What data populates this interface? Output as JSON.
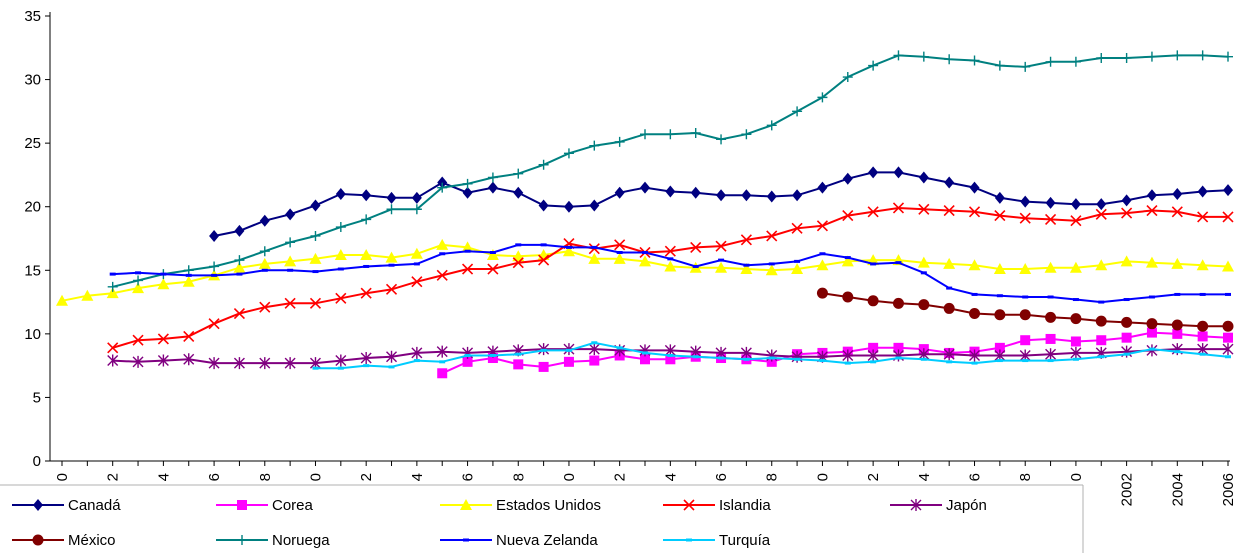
{
  "chart_data": {
    "type": "line",
    "title": "",
    "xlabel": "",
    "ylabel": "",
    "ylim": [
      0,
      35
    ],
    "y_ticks": [
      "0",
      "5",
      "10",
      "15",
      "20",
      "25",
      "30",
      "35"
    ],
    "grid": false,
    "legend_position": "bottom",
    "x_start_year": 1960,
    "x_end_year": 2006,
    "x_tick_labels": [
      "0",
      "2",
      "4",
      "6",
      "8",
      "0",
      "2",
      "4",
      "6",
      "8",
      "0",
      "2",
      "4",
      "6",
      "8",
      "0",
      "2",
      "4",
      "6",
      "8",
      "0",
      "2002",
      "2004",
      "2006"
    ],
    "series": [
      {
        "name": "Canadá",
        "color": "#000080",
        "marker": "diamond",
        "x": [
          1966,
          1967,
          1968,
          1969,
          1970,
          1971,
          1972,
          1973,
          1974,
          1975,
          1976,
          1977,
          1978,
          1979,
          1980,
          1981,
          1982,
          1983,
          1984,
          1985,
          1986,
          1987,
          1988,
          1989,
          1990,
          1991,
          1992,
          1993,
          1994,
          1995,
          1996,
          1997,
          1998,
          1999,
          2000,
          2001,
          2002,
          2003,
          2004,
          2005,
          2006
        ],
        "values": [
          17.7,
          18.1,
          18.9,
          19.4,
          20.1,
          21.0,
          20.9,
          20.7,
          20.7,
          21.9,
          21.1,
          21.5,
          21.1,
          20.1,
          20.0,
          20.1,
          21.1,
          21.5,
          21.2,
          21.1,
          20.9,
          20.9,
          20.8,
          20.9,
          21.5,
          22.2,
          22.7,
          22.7,
          22.3,
          21.9,
          21.5,
          20.7,
          20.4,
          20.3,
          20.2,
          20.2,
          20.5,
          20.9,
          21.0,
          21.2,
          21.3
        ]
      },
      {
        "name": "Corea",
        "color": "#FF00FF",
        "marker": "square",
        "x": [
          1975,
          1976,
          1977,
          1978,
          1979,
          1980,
          1981,
          1982,
          1983,
          1984,
          1985,
          1986,
          1987,
          1988,
          1989,
          1990,
          1991,
          1992,
          1993,
          1994,
          1995,
          1996,
          1997,
          1998,
          1999,
          2000,
          2001,
          2002,
          2003,
          2004,
          2005,
          2006
        ],
        "values": [
          6.9,
          7.8,
          8.1,
          7.6,
          7.4,
          7.8,
          7.9,
          8.3,
          8.0,
          8.0,
          8.2,
          8.1,
          8.0,
          7.8,
          8.4,
          8.5,
          8.6,
          8.9,
          8.9,
          8.8,
          8.5,
          8.6,
          8.9,
          9.5,
          9.6,
          9.4,
          9.5,
          9.7,
          10.1,
          10.0,
          9.8,
          9.7
        ]
      },
      {
        "name": "Estados Unidos",
        "color": "#FFFF00",
        "marker": "triangle",
        "x": [
          1960,
          1961,
          1962,
          1963,
          1964,
          1965,
          1966,
          1967,
          1968,
          1969,
          1970,
          1971,
          1972,
          1973,
          1974,
          1975,
          1976,
          1977,
          1978,
          1979,
          1980,
          1981,
          1982,
          1983,
          1984,
          1985,
          1986,
          1987,
          1988,
          1989,
          1990,
          1991,
          1992,
          1993,
          1994,
          1995,
          1996,
          1997,
          1998,
          1999,
          2000,
          2001,
          2002,
          2003,
          2004,
          2005,
          2006
        ],
        "values": [
          12.6,
          13.0,
          13.2,
          13.6,
          13.9,
          14.1,
          14.6,
          15.2,
          15.5,
          15.7,
          15.9,
          16.2,
          16.2,
          16.0,
          16.3,
          17.0,
          16.8,
          16.2,
          16.1,
          16.2,
          16.5,
          15.9,
          15.9,
          15.7,
          15.3,
          15.2,
          15.2,
          15.1,
          15.0,
          15.1,
          15.4,
          15.7,
          15.8,
          15.8,
          15.6,
          15.5,
          15.4,
          15.1,
          15.1,
          15.2,
          15.2,
          15.4,
          15.7,
          15.6,
          15.5,
          15.4,
          15.3
        ]
      },
      {
        "name": "Islandia",
        "color": "#FF0000",
        "marker": "x",
        "x": [
          1962,
          1963,
          1964,
          1965,
          1966,
          1967,
          1968,
          1969,
          1970,
          1971,
          1972,
          1973,
          1974,
          1975,
          1976,
          1977,
          1978,
          1979,
          1980,
          1981,
          1982,
          1983,
          1984,
          1985,
          1986,
          1987,
          1988,
          1989,
          1990,
          1991,
          1992,
          1993,
          1994,
          1995,
          1996,
          1997,
          1998,
          1999,
          2000,
          2001,
          2002,
          2003,
          2004,
          2005,
          2006
        ],
        "values": [
          8.9,
          9.5,
          9.6,
          9.8,
          10.8,
          11.6,
          12.1,
          12.4,
          12.4,
          12.8,
          13.2,
          13.5,
          14.1,
          14.6,
          15.1,
          15.1,
          15.6,
          15.8,
          17.1,
          16.7,
          17.0,
          16.4,
          16.5,
          16.8,
          16.9,
          17.4,
          17.7,
          18.3,
          18.5,
          19.3,
          19.6,
          19.9,
          19.8,
          19.7,
          19.6,
          19.3,
          19.1,
          19.0,
          18.9,
          19.4,
          19.5,
          19.7,
          19.6,
          19.2,
          19.2
        ]
      },
      {
        "name": "Japón",
        "color": "#800080",
        "marker": "star",
        "x": [
          1962,
          1963,
          1964,
          1965,
          1966,
          1967,
          1968,
          1969,
          1970,
          1971,
          1972,
          1973,
          1974,
          1975,
          1976,
          1977,
          1978,
          1979,
          1980,
          1981,
          1982,
          1983,
          1984,
          1985,
          1986,
          1987,
          1988,
          1989,
          1990,
          1991,
          1992,
          1993,
          1994,
          1995,
          1996,
          1997,
          1998,
          1999,
          2000,
          2001,
          2002,
          2003,
          2004,
          2005,
          2006
        ],
        "values": [
          7.9,
          7.8,
          7.9,
          8.0,
          7.7,
          7.7,
          7.7,
          7.7,
          7.7,
          7.9,
          8.1,
          8.2,
          8.5,
          8.6,
          8.5,
          8.6,
          8.7,
          8.8,
          8.8,
          8.8,
          8.7,
          8.7,
          8.7,
          8.6,
          8.5,
          8.5,
          8.3,
          8.2,
          8.2,
          8.3,
          8.3,
          8.3,
          8.4,
          8.4,
          8.3,
          8.3,
          8.3,
          8.4,
          8.5,
          8.5,
          8.6,
          8.7,
          8.8,
          8.8,
          8.8
        ]
      },
      {
        "name": "México",
        "color": "#800000",
        "marker": "circle",
        "x": [
          1990,
          1991,
          1992,
          1993,
          1994,
          1995,
          1996,
          1997,
          1998,
          1999,
          2000,
          2001,
          2002,
          2003,
          2004,
          2005,
          2006
        ],
        "values": [
          13.2,
          12.9,
          12.6,
          12.4,
          12.3,
          12.0,
          11.6,
          11.5,
          11.5,
          11.3,
          11.2,
          11.0,
          10.9,
          10.8,
          10.7,
          10.6,
          10.6
        ]
      },
      {
        "name": "Noruega",
        "color": "#008080",
        "marker": "plus",
        "x": [
          1962,
          1963,
          1964,
          1965,
          1966,
          1967,
          1968,
          1969,
          1970,
          1971,
          1972,
          1973,
          1974,
          1975,
          1976,
          1977,
          1978,
          1979,
          1980,
          1981,
          1982,
          1983,
          1984,
          1985,
          1986,
          1987,
          1988,
          1989,
          1990,
          1991,
          1992,
          1993,
          1994,
          1995,
          1996,
          1997,
          1998,
          1999,
          2000,
          2001,
          2002,
          2003,
          2004,
          2005,
          2006
        ],
        "values": [
          13.7,
          14.2,
          14.7,
          15.0,
          15.3,
          15.8,
          16.5,
          17.2,
          17.7,
          18.4,
          19.0,
          19.8,
          19.8,
          21.5,
          21.8,
          22.3,
          22.6,
          23.3,
          24.2,
          24.8,
          25.1,
          25.7,
          25.7,
          25.8,
          25.3,
          25.7,
          26.4,
          27.5,
          28.6,
          30.2,
          31.1,
          31.9,
          31.8,
          31.6,
          31.5,
          31.1,
          31.0,
          31.4,
          31.4,
          31.7,
          31.7,
          31.8,
          31.9,
          31.9,
          31.8
        ]
      },
      {
        "name": "Nueva Zelanda",
        "color": "#0000FF",
        "marker": "dash",
        "x": [
          1962,
          1963,
          1964,
          1965,
          1966,
          1967,
          1968,
          1969,
          1970,
          1971,
          1972,
          1973,
          1974,
          1975,
          1976,
          1977,
          1978,
          1979,
          1980,
          1981,
          1982,
          1983,
          1984,
          1985,
          1986,
          1987,
          1988,
          1989,
          1990,
          1991,
          1992,
          1993,
          1994,
          1995,
          1996,
          1997,
          1998,
          1999,
          2000,
          2001,
          2002,
          2003,
          2004,
          2005,
          2006
        ],
        "values": [
          14.7,
          14.8,
          14.7,
          14.6,
          14.6,
          14.7,
          15.0,
          15.0,
          14.9,
          15.1,
          15.3,
          15.4,
          15.5,
          16.3,
          16.5,
          16.4,
          17.0,
          17.0,
          16.8,
          16.8,
          16.4,
          16.4,
          15.9,
          15.3,
          15.8,
          15.4,
          15.5,
          15.7,
          16.3,
          16.0,
          15.5,
          15.6,
          14.8,
          13.6,
          13.1,
          13.0,
          12.9,
          12.9,
          12.7,
          12.5,
          12.7,
          12.9,
          13.1,
          13.1,
          13.1
        ]
      },
      {
        "name": "Turquía",
        "color": "#00CCFF",
        "marker": "dash",
        "x": [
          1970,
          1971,
          1972,
          1973,
          1974,
          1975,
          1976,
          1977,
          1978,
          1979,
          1980,
          1981,
          1982,
          1983,
          1984,
          1985,
          1986,
          1987,
          1988,
          1989,
          1990,
          1991,
          1992,
          1993,
          1994,
          1995,
          1996,
          1997,
          1998,
          1999,
          2000,
          2001,
          2002,
          2003,
          2004,
          2005,
          2006
        ],
        "values": [
          7.3,
          7.3,
          7.5,
          7.4,
          7.9,
          7.8,
          8.3,
          8.3,
          8.4,
          8.7,
          8.7,
          9.3,
          8.9,
          8.5,
          8.3,
          8.2,
          8.1,
          8.0,
          8.1,
          8.0,
          7.9,
          7.7,
          7.8,
          8.1,
          8.0,
          7.8,
          7.7,
          7.9,
          7.9,
          7.9,
          8.0,
          8.2,
          8.4,
          8.8,
          8.6,
          8.4,
          8.2
        ]
      }
    ]
  }
}
